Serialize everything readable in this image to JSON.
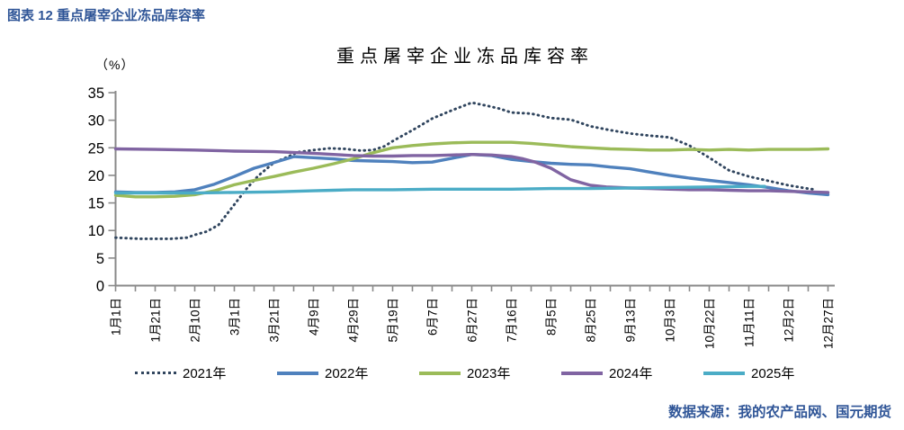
{
  "page": {
    "header_title": "图表 12 重点屠宰企业冻品库容率",
    "source_text": "数据来源：我的农产品网、国元期货"
  },
  "chart_data": {
    "type": "line",
    "title": "重点屠宰企业冻品库容率",
    "unit_label": "（%）",
    "ylim": [
      0,
      35
    ],
    "y_ticks": [
      0,
      5,
      10,
      15,
      20,
      25,
      30,
      35
    ],
    "x_tick_labels": [
      "1月1日",
      "1月21日",
      "2月10日",
      "3月1日",
      "3月21日",
      "4月9日",
      "4月29日",
      "5月19日",
      "6月7日",
      "6月27日",
      "7月16日",
      "8月5日",
      "8月25日",
      "9月13日",
      "10月3日",
      "10月22日",
      "11月11日",
      "12月2日",
      "12月27日"
    ],
    "grid": false,
    "legend_position": "bottom",
    "axis_color": "#8A8A8A",
    "text_color": "#000000",
    "accent_color": "#2F5597",
    "series": [
      {
        "name": "2021年",
        "color": "#30455E",
        "style": "dotted",
        "points": [
          [
            0,
            8.7
          ],
          [
            0.3,
            8.6
          ],
          [
            0.6,
            8.5
          ],
          [
            1,
            8.5
          ],
          [
            1.4,
            8.5
          ],
          [
            1.8,
            8.7
          ],
          [
            2,
            9.2
          ],
          [
            2.3,
            9.8
          ],
          [
            2.6,
            11.0
          ],
          [
            3,
            14.7
          ],
          [
            3.3,
            17.5
          ],
          [
            3.6,
            19.9
          ],
          [
            4,
            22.3
          ],
          [
            4.3,
            23.2
          ],
          [
            4.6,
            24.2
          ],
          [
            5,
            24.6
          ],
          [
            5.4,
            24.9
          ],
          [
            5.8,
            24.8
          ],
          [
            6.2,
            24.5
          ],
          [
            6.5,
            24.6
          ],
          [
            6.8,
            25.3
          ],
          [
            7,
            26.2
          ],
          [
            7.3,
            27.4
          ],
          [
            7.6,
            28.6
          ],
          [
            8,
            30.3
          ],
          [
            8.5,
            31.8
          ],
          [
            9,
            33.2
          ],
          [
            9.4,
            32.6
          ],
          [
            9.7,
            32.1
          ],
          [
            10,
            31.4
          ],
          [
            10.5,
            31.2
          ],
          [
            11,
            30.4
          ],
          [
            11.5,
            30.1
          ],
          [
            12,
            28.9
          ],
          [
            12.5,
            28.2
          ],
          [
            13,
            27.6
          ],
          [
            13.5,
            27.2
          ],
          [
            14,
            26.9
          ],
          [
            14.5,
            25.4
          ],
          [
            15,
            23.2
          ],
          [
            15.5,
            20.9
          ],
          [
            16,
            19.8
          ],
          [
            16.5,
            19.0
          ],
          [
            17,
            18.2
          ],
          [
            17.4,
            17.7
          ],
          [
            17.7,
            17.4
          ]
        ]
      },
      {
        "name": "2022年",
        "color": "#4F81BD",
        "style": "solid",
        "points": [
          [
            0,
            17.0
          ],
          [
            0.5,
            16.9
          ],
          [
            1,
            16.9
          ],
          [
            1.5,
            17.0
          ],
          [
            2,
            17.4
          ],
          [
            2.5,
            18.4
          ],
          [
            3,
            19.8
          ],
          [
            3.5,
            21.3
          ],
          [
            4,
            22.3
          ],
          [
            4.5,
            23.4
          ],
          [
            5,
            23.2
          ],
          [
            5.5,
            23.0
          ],
          [
            6,
            22.7
          ],
          [
            6.5,
            22.6
          ],
          [
            7,
            22.5
          ],
          [
            7.5,
            22.3
          ],
          [
            8,
            22.4
          ],
          [
            8.5,
            23.1
          ],
          [
            9,
            23.8
          ],
          [
            9.5,
            23.6
          ],
          [
            10,
            22.9
          ],
          [
            10.5,
            22.5
          ],
          [
            11,
            22.2
          ],
          [
            11.5,
            22.0
          ],
          [
            12,
            21.9
          ],
          [
            12.5,
            21.5
          ],
          [
            13,
            21.2
          ],
          [
            13.5,
            20.6
          ],
          [
            14,
            20.0
          ],
          [
            14.5,
            19.5
          ],
          [
            15,
            19.1
          ],
          [
            15.5,
            18.7
          ],
          [
            16,
            18.3
          ],
          [
            16.5,
            17.8
          ],
          [
            17,
            17.2
          ],
          [
            17.5,
            16.8
          ],
          [
            18,
            16.5
          ]
        ]
      },
      {
        "name": "2023年",
        "color": "#9BBB59",
        "style": "solid",
        "points": [
          [
            0,
            16.4
          ],
          [
            0.5,
            16.1
          ],
          [
            1,
            16.1
          ],
          [
            1.5,
            16.2
          ],
          [
            2,
            16.5
          ],
          [
            2.5,
            17.2
          ],
          [
            3,
            18.3
          ],
          [
            3.5,
            19.1
          ],
          [
            4,
            19.8
          ],
          [
            4.5,
            20.6
          ],
          [
            5,
            21.3
          ],
          [
            5.5,
            22.1
          ],
          [
            6,
            23.0
          ],
          [
            6.5,
            24.1
          ],
          [
            7,
            25.0
          ],
          [
            7.5,
            25.4
          ],
          [
            8,
            25.7
          ],
          [
            8.5,
            25.9
          ],
          [
            9,
            26.0
          ],
          [
            9.5,
            26.0
          ],
          [
            10,
            26.0
          ],
          [
            10.5,
            25.8
          ],
          [
            11,
            25.5
          ],
          [
            11.5,
            25.2
          ],
          [
            12,
            25.0
          ],
          [
            12.5,
            24.8
          ],
          [
            13,
            24.7
          ],
          [
            13.5,
            24.6
          ],
          [
            14,
            24.6
          ],
          [
            14.5,
            24.7
          ],
          [
            15,
            24.6
          ],
          [
            15.5,
            24.7
          ],
          [
            16,
            24.6
          ],
          [
            16.5,
            24.7
          ],
          [
            17,
            24.7
          ],
          [
            17.5,
            24.7
          ],
          [
            18,
            24.8
          ]
        ]
      },
      {
        "name": "2024年",
        "color": "#8064A2",
        "style": "solid",
        "points": [
          [
            0,
            24.8
          ],
          [
            1,
            24.7
          ],
          [
            2,
            24.6
          ],
          [
            3,
            24.4
          ],
          [
            4,
            24.3
          ],
          [
            5,
            24.0
          ],
          [
            5.5,
            23.8
          ],
          [
            6,
            23.6
          ],
          [
            6.5,
            23.5
          ],
          [
            7,
            23.5
          ],
          [
            7.5,
            23.6
          ],
          [
            8,
            23.6
          ],
          [
            8.5,
            23.7
          ],
          [
            9,
            23.8
          ],
          [
            9.5,
            23.7
          ],
          [
            10,
            23.4
          ],
          [
            10.3,
            23.0
          ],
          [
            10.6,
            22.4
          ],
          [
            11,
            21.3
          ],
          [
            11.5,
            19.2
          ],
          [
            12,
            18.2
          ],
          [
            12.4,
            17.9
          ],
          [
            13,
            17.7
          ],
          [
            13.5,
            17.6
          ],
          [
            14,
            17.5
          ],
          [
            14.5,
            17.4
          ],
          [
            15,
            17.4
          ],
          [
            15.5,
            17.3
          ],
          [
            16,
            17.2
          ],
          [
            16.5,
            17.2
          ],
          [
            17,
            17.1
          ],
          [
            17.5,
            17.0
          ],
          [
            18,
            16.9
          ]
        ]
      },
      {
        "name": "2025年",
        "color": "#4BACC6",
        "style": "solid",
        "points": [
          [
            0,
            16.8
          ],
          [
            0.5,
            16.8
          ],
          [
            1,
            16.8
          ],
          [
            1.5,
            16.8
          ],
          [
            2,
            16.8
          ],
          [
            3,
            16.9
          ],
          [
            4,
            17.0
          ],
          [
            5,
            17.2
          ],
          [
            5.5,
            17.3
          ],
          [
            6,
            17.4
          ],
          [
            7,
            17.4
          ],
          [
            8,
            17.5
          ],
          [
            9,
            17.5
          ],
          [
            10,
            17.5
          ],
          [
            11,
            17.6
          ],
          [
            12,
            17.6
          ],
          [
            13,
            17.7
          ],
          [
            14,
            17.8
          ],
          [
            15,
            17.9
          ],
          [
            16,
            18.0
          ],
          [
            16.4,
            18.0
          ]
        ]
      }
    ]
  }
}
